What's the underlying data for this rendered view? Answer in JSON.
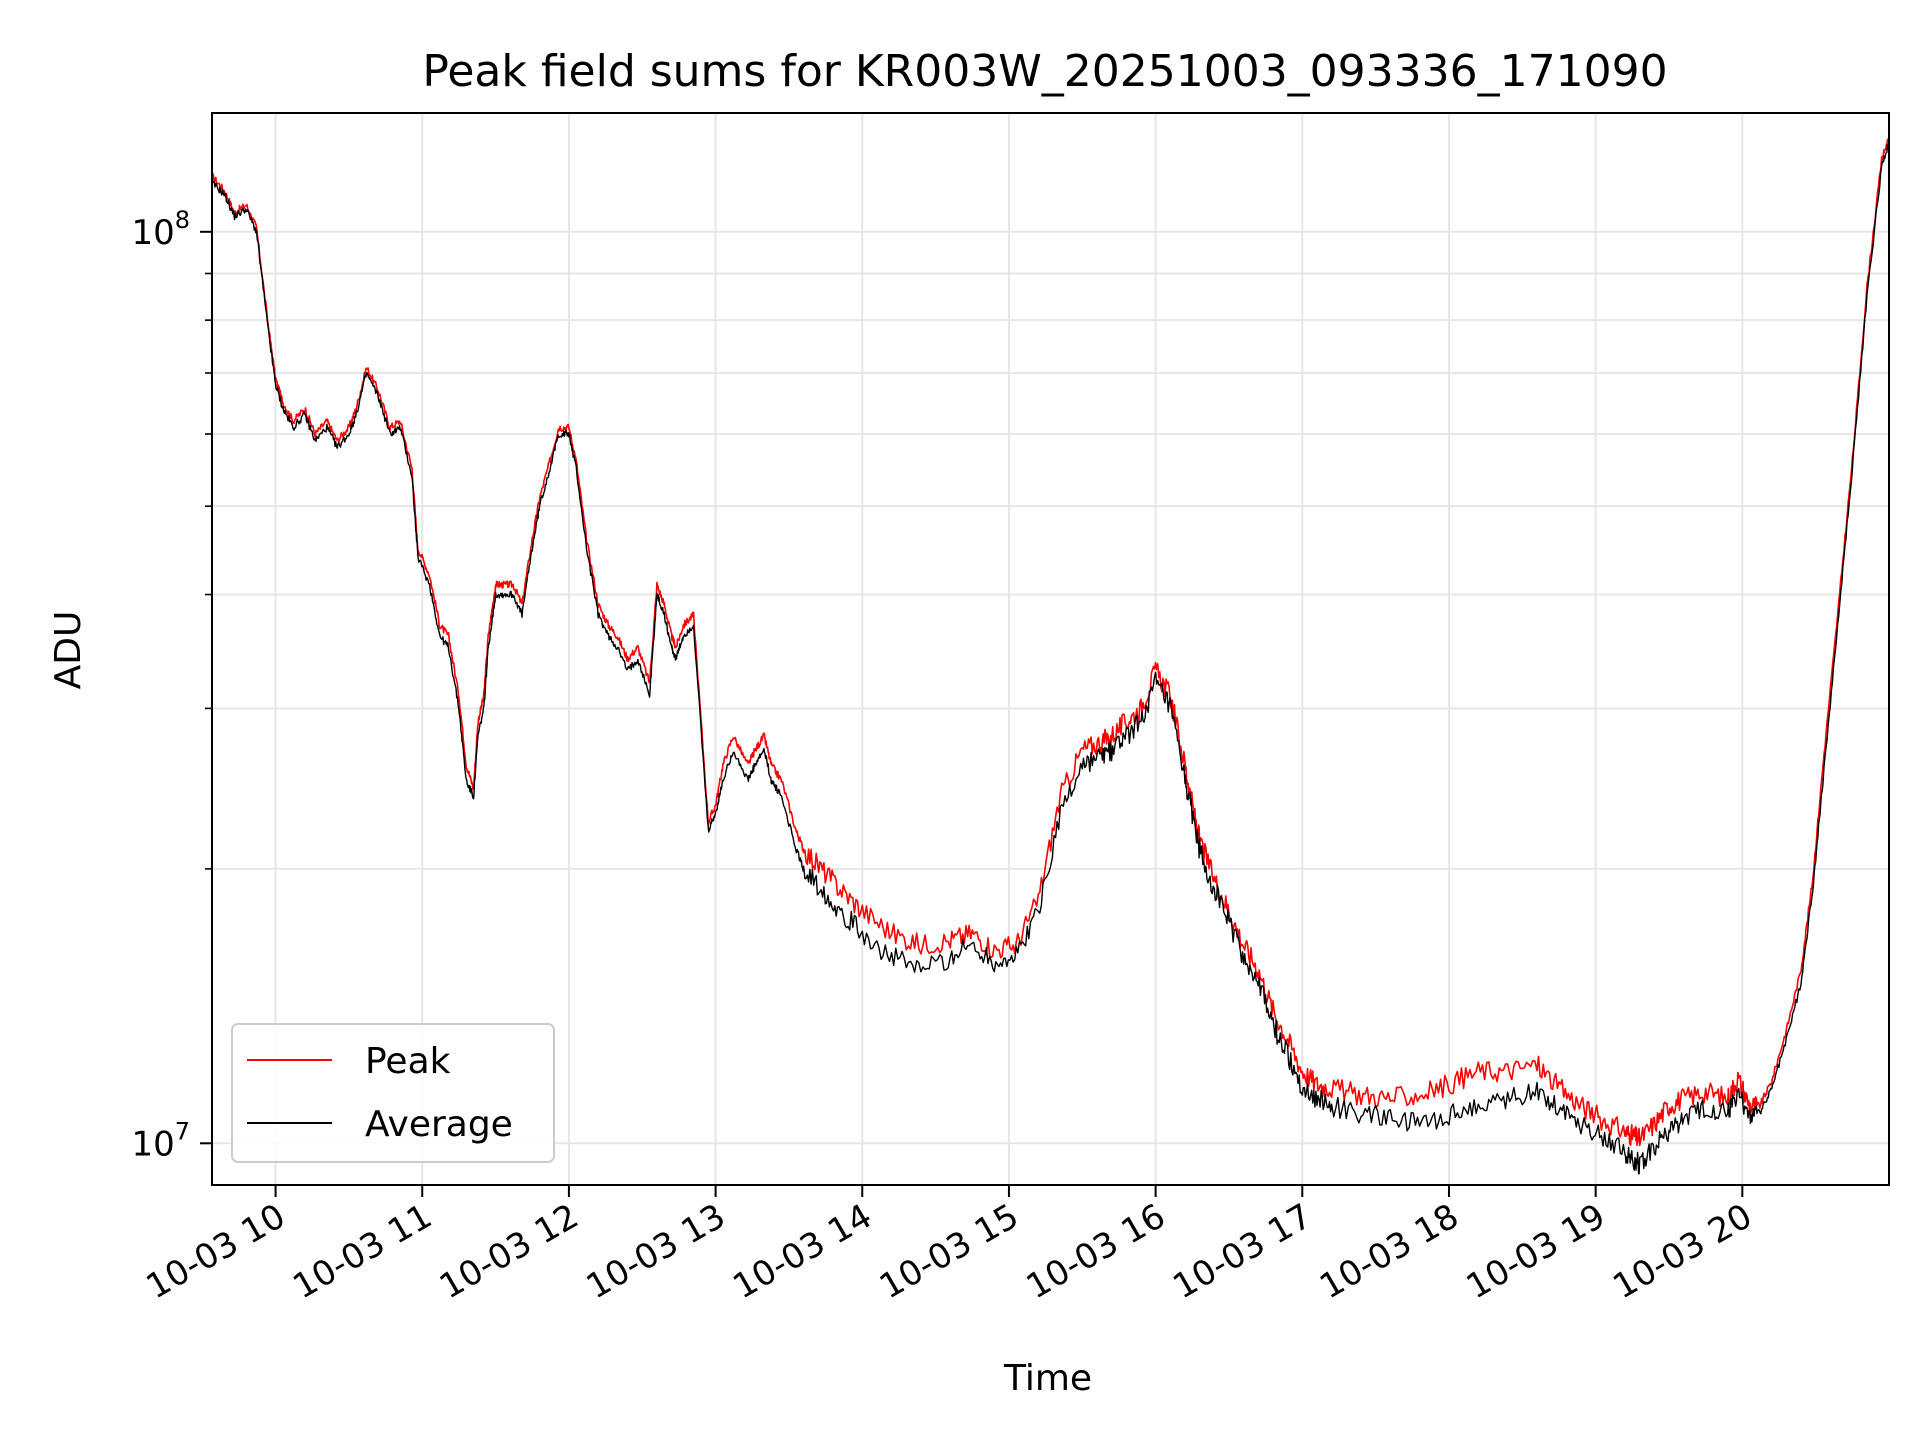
{
  "chart_data": {
    "type": "line",
    "title": "Peak field sums for KR003W_20251003_093336_171090",
    "xlabel": "Time",
    "ylabel": "ADU",
    "x_axis": {
      "start": "2025-10-03T09:34",
      "end": "2025-10-03T21:00",
      "ticks": [
        "10-03 10",
        "10-03 11",
        "10-03 12",
        "10-03 13",
        "10-03 14",
        "10-03 15",
        "10-03 16",
        "10-03 17",
        "10-03 18",
        "10-03 19",
        "10-03 20"
      ],
      "tick_hours": [
        10,
        11,
        12,
        13,
        14,
        15,
        16,
        17,
        18,
        19,
        20
      ]
    },
    "y_axis": {
      "scale": "log",
      "range": [
        9000000,
        135000000
      ],
      "major_ticks": [
        10000000,
        100000000
      ],
      "major_labels": [
        {
          "base": "10",
          "exp": "7"
        },
        {
          "base": "10",
          "exp": "8"
        }
      ],
      "minor_ticks": [
        20000000,
        30000000,
        40000000,
        50000000,
        60000000,
        70000000,
        80000000,
        90000000
      ]
    },
    "grid": true,
    "legend": {
      "position": "lower-left",
      "entries": [
        {
          "name": "Peak",
          "color": "#ff0000"
        },
        {
          "name": "Average",
          "color": "#000000"
        }
      ]
    },
    "series": [
      {
        "name": "Average",
        "color": "#000000",
        "x_hours": [
          9.57,
          9.65,
          9.72,
          9.8,
          9.87,
          9.95,
          10.0,
          10.05,
          10.12,
          10.2,
          10.27,
          10.35,
          10.42,
          10.5,
          10.55,
          10.62,
          10.7,
          10.78,
          10.85,
          10.93,
          10.97,
          11.05,
          11.12,
          11.18,
          11.25,
          11.3,
          11.35,
          11.38,
          11.42,
          11.45,
          11.5,
          11.55,
          11.62,
          11.68,
          11.75,
          11.8,
          11.87,
          11.93,
          12.0,
          12.05,
          12.12,
          12.2,
          12.27,
          12.33,
          12.4,
          12.47,
          12.55,
          12.6,
          12.65,
          12.7,
          12.73,
          12.78,
          12.85,
          12.95,
          13.0,
          13.05,
          13.12,
          13.22,
          13.27,
          13.33,
          13.38,
          13.45,
          13.55,
          13.6,
          13.72,
          13.85,
          14.0,
          14.2,
          14.4,
          14.6,
          14.75,
          14.9,
          15.05,
          15.2,
          15.35,
          15.5,
          15.62,
          15.7,
          15.8,
          15.9,
          16.0,
          16.1,
          16.2,
          16.25,
          16.3,
          16.4,
          16.5,
          16.6,
          16.7,
          16.8,
          16.9,
          17.0,
          17.1,
          17.2,
          17.4,
          17.6,
          17.8,
          18.0,
          18.2,
          18.4,
          18.6,
          18.75,
          18.9,
          19.05,
          19.2,
          19.25,
          19.3,
          19.4,
          19.5,
          19.6,
          19.75,
          19.9,
          19.97,
          20.05,
          20.12,
          20.2,
          20.3,
          20.4,
          20.48,
          20.55,
          20.65,
          20.75,
          20.85,
          20.95,
          21.0
        ],
        "values": [
          113000000,
          110000000,
          104000000,
          106000000,
          100000000,
          78000000,
          68000000,
          64000000,
          61000000,
          63000000,
          59000000,
          61000000,
          58000000,
          60000000,
          63000000,
          70000000,
          66000000,
          60000000,
          61000000,
          54000000,
          44000000,
          41000000,
          36000000,
          35000000,
          30000000,
          25000000,
          24000000,
          28000000,
          30000000,
          35000000,
          40000000,
          40000000,
          40000000,
          38000000,
          45000000,
          50000000,
          55000000,
          60000000,
          60000000,
          55000000,
          45000000,
          38000000,
          36000000,
          35000000,
          33000000,
          34000000,
          31000000,
          40000000,
          38000000,
          35000000,
          34000000,
          36000000,
          37000000,
          22000000,
          23000000,
          25000000,
          27000000,
          25000000,
          26000000,
          27000000,
          25000000,
          24000000,
          21000000,
          20000000,
          19000000,
          18000000,
          17000000,
          16000000,
          15500000,
          16000000,
          16500000,
          15800000,
          16000000,
          18000000,
          23000000,
          26000000,
          26500000,
          27000000,
          28000000,
          29000000,
          32000000,
          30000000,
          25000000,
          23000000,
          21000000,
          19000000,
          17500000,
          16000000,
          15000000,
          13500000,
          12500000,
          11500000,
          11200000,
          11000000,
          10800000,
          10600000,
          10500000,
          10700000,
          11000000,
          11200000,
          11400000,
          11000000,
          10500000,
          10200000,
          9800000,
          9600000,
          9500000,
          9900000,
          10300000,
          10600000,
          10900000,
          10800000,
          11300000,
          10800000,
          10800000,
          11500000,
          13000000,
          15000000,
          19000000,
          25000000,
          37000000,
          55000000,
          85000000,
          118000000,
          125000000
        ]
      },
      {
        "name": "Peak",
        "color": "#ff0000",
        "x_hours": [
          9.57,
          9.65,
          9.72,
          9.8,
          9.87,
          9.95,
          10.0,
          10.05,
          10.12,
          10.2,
          10.27,
          10.35,
          10.42,
          10.5,
          10.55,
          10.62,
          10.7,
          10.78,
          10.85,
          10.93,
          10.97,
          11.05,
          11.12,
          11.18,
          11.25,
          11.3,
          11.35,
          11.38,
          11.42,
          11.45,
          11.5,
          11.55,
          11.62,
          11.68,
          11.75,
          11.8,
          11.87,
          11.93,
          12.0,
          12.05,
          12.12,
          12.2,
          12.27,
          12.33,
          12.4,
          12.47,
          12.55,
          12.6,
          12.65,
          12.7,
          12.73,
          12.78,
          12.85,
          12.95,
          13.0,
          13.05,
          13.12,
          13.22,
          13.27,
          13.33,
          13.38,
          13.45,
          13.55,
          13.6,
          13.72,
          13.85,
          14.0,
          14.2,
          14.4,
          14.6,
          14.75,
          14.9,
          15.05,
          15.2,
          15.35,
          15.5,
          15.62,
          15.7,
          15.8,
          15.9,
          16.0,
          16.1,
          16.2,
          16.25,
          16.3,
          16.4,
          16.5,
          16.6,
          16.7,
          16.8,
          16.9,
          17.0,
          17.1,
          17.2,
          17.4,
          17.6,
          17.8,
          18.0,
          18.2,
          18.4,
          18.6,
          18.75,
          18.9,
          19.05,
          19.2,
          19.25,
          19.3,
          19.4,
          19.5,
          19.6,
          19.75,
          19.9,
          19.97,
          20.05,
          20.12,
          20.2,
          20.3,
          20.4,
          20.48,
          20.55,
          20.65,
          20.75,
          20.85,
          20.95,
          21.0
        ],
        "values": [
          115000000,
          111000000,
          105000000,
          107000000,
          101000000,
          79000000,
          69000000,
          65000000,
          62000000,
          64000000,
          60000000,
          62000000,
          59000000,
          61000000,
          64000000,
          71000000,
          67000000,
          61000000,
          62000000,
          55000000,
          45000000,
          42000000,
          37000000,
          36000000,
          31000000,
          26000000,
          24500000,
          29000000,
          31000000,
          36000000,
          41000000,
          41000000,
          41000000,
          39000000,
          46000000,
          51000000,
          56000000,
          61000000,
          61000000,
          56000000,
          46000000,
          39000000,
          37000000,
          36000000,
          34000000,
          35000000,
          32000000,
          41000000,
          39000000,
          36000000,
          35000000,
          37000000,
          38000000,
          22500000,
          23500000,
          26000000,
          28000000,
          26000000,
          27000000,
          28000000,
          26000000,
          25000000,
          22000000,
          21000000,
          20000000,
          19000000,
          18000000,
          17000000,
          16500000,
          16700000,
          17000000,
          16300000,
          16500000,
          18500000,
          24000000,
          27000000,
          27500000,
          28000000,
          29000000,
          30000000,
          33000000,
          31000000,
          26000000,
          23500000,
          21500000,
          19500000,
          18000000,
          16500000,
          15500000,
          14000000,
          13000000,
          12000000,
          11600000,
          11500000,
          11300000,
          11200000,
          11300000,
          11600000,
          12000000,
          12000000,
          12200000,
          11500000,
          11000000,
          10600000,
          10300000,
          10200000,
          10100000,
          10500000,
          11000000,
          11200000,
          11400000,
          11200000,
          11800000,
          11000000,
          11000000,
          11700000,
          13300000,
          15500000,
          19500000,
          26000000,
          38000000,
          56000000,
          87000000,
          120000000,
          127000000
        ]
      }
    ]
  }
}
